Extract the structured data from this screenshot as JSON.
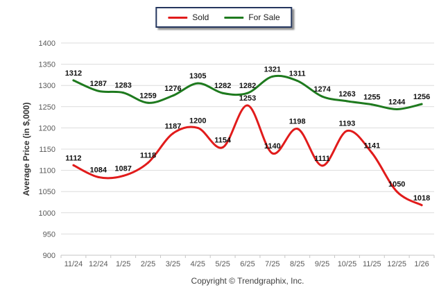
{
  "legend": {
    "items": [
      {
        "label": "Sold",
        "color": "#e11b1b"
      },
      {
        "label": "For Sale",
        "color": "#1e7a1e"
      }
    ]
  },
  "footer": {
    "copyright": "Copyright © Trendgraphix, Inc."
  },
  "chart_data": {
    "type": "line",
    "title": "",
    "xlabel": "",
    "ylabel": "Average Price (in $,000)",
    "ylim": [
      900,
      1400
    ],
    "ytick_step": 50,
    "grid": true,
    "legend_position": "top-center",
    "data_labels": true,
    "categories": [
      "11/24",
      "12/24",
      "1/25",
      "2/25",
      "3/25",
      "4/25",
      "5/25",
      "6/25",
      "7/25",
      "8/25",
      "9/25",
      "10/25",
      "11/25",
      "12/25",
      "1/26"
    ],
    "series": [
      {
        "name": "Sold",
        "color": "#e11b1b",
        "values": [
          1112,
          1084,
          1087,
          1118,
          1187,
          1200,
          1154,
          1253,
          1140,
          1198,
          1111,
          1193,
          1141,
          1050,
          1018
        ]
      },
      {
        "name": "For Sale",
        "color": "#1e7a1e",
        "values": [
          1312,
          1287,
          1283,
          1259,
          1276,
          1305,
          1282,
          1282,
          1321,
          1311,
          1274,
          1263,
          1255,
          1244,
          1256
        ]
      }
    ],
    "colors": {
      "gridline": "#dcdcdc",
      "axis_line": "#c6c6c6",
      "tick_text": "#595959",
      "data_label": "#111111",
      "legend_border": "#24365e"
    }
  }
}
